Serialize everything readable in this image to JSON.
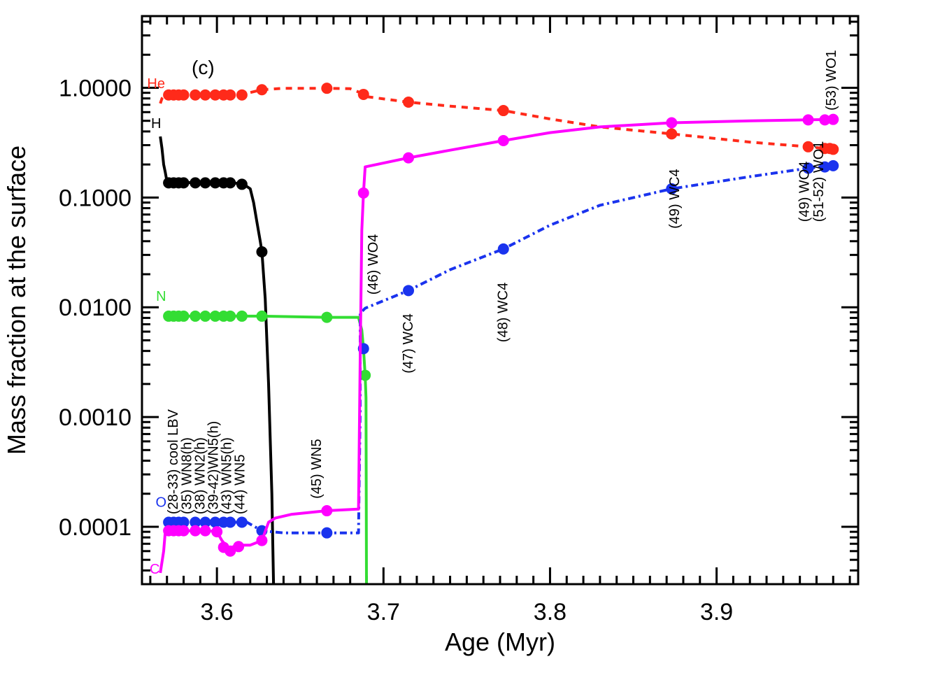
{
  "chart_data": {
    "type": "line",
    "panel_label": "(c)",
    "xlabel": "Age (Myr)",
    "ylabel": "Mass fraction at the surface",
    "xlim": [
      3.555,
      3.985
    ],
    "ylim": [
      3e-05,
      4.5
    ],
    "yscale": "log",
    "x_ticks": [
      3.6,
      3.7,
      3.8,
      3.9
    ],
    "x_tick_labels": [
      "3.6",
      "3.7",
      "3.8",
      "3.9"
    ],
    "y_ticks": [
      0.0001,
      0.001,
      0.01,
      0.1,
      1.0
    ],
    "y_tick_labels": [
      "0.0001",
      "0.0010",
      "0.0100",
      "0.1000",
      "1.0000"
    ],
    "series": [
      {
        "name": "He",
        "label": "He",
        "color": "#ff2a1a",
        "dash": "dashed",
        "line": [
          [
            3.566,
            0.72
          ],
          [
            3.567,
            0.8
          ],
          [
            3.569,
            0.85
          ],
          [
            3.6,
            0.86
          ],
          [
            3.615,
            0.87
          ],
          [
            3.627,
            0.96
          ],
          [
            3.64,
            0.99
          ],
          [
            3.666,
            0.99
          ],
          [
            3.68,
            0.98
          ],
          [
            3.688,
            0.88
          ],
          [
            3.69,
            0.83
          ],
          [
            3.715,
            0.74
          ],
          [
            3.74,
            0.68
          ],
          [
            3.772,
            0.62
          ],
          [
            3.8,
            0.52
          ],
          [
            3.83,
            0.44
          ],
          [
            3.873,
            0.38
          ],
          [
            3.92,
            0.32
          ],
          [
            3.955,
            0.29
          ],
          [
            3.97,
            0.275
          ]
        ],
        "points": [
          [
            3.571,
            0.86
          ],
          [
            3.574,
            0.86
          ],
          [
            3.577,
            0.86
          ],
          [
            3.58,
            0.86
          ],
          [
            3.587,
            0.86
          ],
          [
            3.593,
            0.86
          ],
          [
            3.599,
            0.86
          ],
          [
            3.604,
            0.86
          ],
          [
            3.608,
            0.86
          ],
          [
            3.615,
            0.86
          ],
          [
            3.627,
            0.96
          ],
          [
            3.666,
            0.99
          ],
          [
            3.688,
            0.87
          ],
          [
            3.715,
            0.74
          ],
          [
            3.772,
            0.62
          ],
          [
            3.873,
            0.38
          ],
          [
            3.955,
            0.29
          ],
          [
            3.965,
            0.28
          ],
          [
            3.968,
            0.28
          ],
          [
            3.97,
            0.275
          ]
        ]
      },
      {
        "name": "H",
        "label": "H",
        "color": "#000000",
        "dash": "solid",
        "line": [
          [
            3.566,
            0.36
          ],
          [
            3.567,
            0.28
          ],
          [
            3.568,
            0.2
          ],
          [
            3.569,
            0.17
          ],
          [
            3.57,
            0.14
          ],
          [
            3.574,
            0.137
          ],
          [
            3.61,
            0.136
          ],
          [
            3.616,
            0.132
          ],
          [
            3.62,
            0.12
          ],
          [
            3.622,
            0.09
          ],
          [
            3.624,
            0.06
          ],
          [
            3.626,
            0.04
          ],
          [
            3.627,
            0.032
          ],
          [
            3.629,
            0.012
          ],
          [
            3.631,
            0.002
          ],
          [
            3.633,
            0.0002
          ],
          [
            3.634,
            3e-05
          ]
        ],
        "points": [
          [
            3.571,
            0.136
          ],
          [
            3.574,
            0.136
          ],
          [
            3.577,
            0.136
          ],
          [
            3.58,
            0.136
          ],
          [
            3.587,
            0.136
          ],
          [
            3.593,
            0.136
          ],
          [
            3.599,
            0.136
          ],
          [
            3.604,
            0.136
          ],
          [
            3.608,
            0.136
          ],
          [
            3.615,
            0.132
          ],
          [
            3.627,
            0.032
          ]
        ]
      },
      {
        "name": "N",
        "label": "N",
        "color": "#33dd33",
        "dash": "solid",
        "line": [
          [
            3.569,
            0.0083
          ],
          [
            3.627,
            0.0083
          ],
          [
            3.666,
            0.0081
          ],
          [
            3.685,
            0.0081
          ],
          [
            3.687,
            0.0062
          ],
          [
            3.688,
            0.0042
          ],
          [
            3.689,
            0.0024
          ],
          [
            3.6895,
            0.0015
          ],
          [
            3.6898,
            3e-05
          ]
        ],
        "points": [
          [
            3.571,
            0.0083
          ],
          [
            3.574,
            0.0083
          ],
          [
            3.577,
            0.0083
          ],
          [
            3.58,
            0.0083
          ],
          [
            3.587,
            0.0083
          ],
          [
            3.593,
            0.0083
          ],
          [
            3.599,
            0.0083
          ],
          [
            3.604,
            0.0083
          ],
          [
            3.608,
            0.0083
          ],
          [
            3.615,
            0.0083
          ],
          [
            3.627,
            0.0083
          ],
          [
            3.666,
            0.0081
          ],
          [
            3.689,
            0.0024
          ]
        ]
      },
      {
        "name": "O",
        "label": "O",
        "color": "#1a33ee",
        "dash": "dashdot",
        "line": [
          [
            3.569,
            0.00011
          ],
          [
            3.618,
            0.00011
          ],
          [
            3.627,
            9.2e-05
          ],
          [
            3.64,
            8.8e-05
          ],
          [
            3.666,
            8.8e-05
          ],
          [
            3.685,
            8.8e-05
          ],
          [
            3.686,
            0.0012
          ],
          [
            3.686,
            0.0088
          ],
          [
            3.689,
            0.0098
          ],
          [
            3.715,
            0.0142
          ],
          [
            3.74,
            0.022
          ],
          [
            3.772,
            0.034
          ],
          [
            3.8,
            0.056
          ],
          [
            3.83,
            0.085
          ],
          [
            3.873,
            0.12
          ],
          [
            3.92,
            0.155
          ],
          [
            3.955,
            0.185
          ],
          [
            3.97,
            0.195
          ]
        ],
        "points": [
          [
            3.571,
            0.00011
          ],
          [
            3.574,
            0.00011
          ],
          [
            3.577,
            0.00011
          ],
          [
            3.58,
            0.00011
          ],
          [
            3.587,
            0.00011
          ],
          [
            3.593,
            0.00011
          ],
          [
            3.599,
            0.00011
          ],
          [
            3.604,
            0.00011
          ],
          [
            3.608,
            0.00011
          ],
          [
            3.615,
            0.00011
          ],
          [
            3.627,
            9.2e-05
          ],
          [
            3.666,
            8.8e-05
          ],
          [
            3.688,
            0.0042
          ],
          [
            3.715,
            0.0142
          ],
          [
            3.772,
            0.034
          ],
          [
            3.873,
            0.12
          ],
          [
            3.955,
            0.185
          ],
          [
            3.965,
            0.19
          ],
          [
            3.97,
            0.195
          ]
        ]
      },
      {
        "name": "C",
        "label": "C",
        "color": "#ff00ff",
        "dash": "solid",
        "line": [
          [
            3.566,
            3.8e-05
          ],
          [
            3.568,
            6e-05
          ],
          [
            3.569,
            9e-05
          ],
          [
            3.58,
            9.2e-05
          ],
          [
            3.595,
            9.2e-05
          ],
          [
            3.6,
            9e-05
          ],
          [
            3.603,
            7.5e-05
          ],
          [
            3.607,
            6.3e-05
          ],
          [
            3.612,
            6.8e-05
          ],
          [
            3.62,
            6.8e-05
          ],
          [
            3.627,
            7.5e-05
          ],
          [
            3.631,
            0.00011
          ],
          [
            3.635,
            0.00012
          ],
          [
            3.645,
            0.00013
          ],
          [
            3.666,
            0.00014
          ],
          [
            3.685,
            0.000145
          ],
          [
            3.686,
            0.0035
          ],
          [
            3.687,
            0.05
          ],
          [
            3.688,
            0.11
          ],
          [
            3.689,
            0.19
          ],
          [
            3.715,
            0.23
          ],
          [
            3.74,
            0.27
          ],
          [
            3.772,
            0.33
          ],
          [
            3.8,
            0.39
          ],
          [
            3.83,
            0.44
          ],
          [
            3.873,
            0.48
          ],
          [
            3.92,
            0.5
          ],
          [
            3.955,
            0.51
          ],
          [
            3.97,
            0.515
          ]
        ],
        "points": [
          [
            3.571,
            9.2e-05
          ],
          [
            3.574,
            9.2e-05
          ],
          [
            3.577,
            9.2e-05
          ],
          [
            3.58,
            9.2e-05
          ],
          [
            3.587,
            9.2e-05
          ],
          [
            3.593,
            9.2e-05
          ],
          [
            3.6,
            9e-05
          ],
          [
            3.604,
            6.5e-05
          ],
          [
            3.608,
            6e-05
          ],
          [
            3.613,
            6.6e-05
          ],
          [
            3.627,
            7.5e-05
          ],
          [
            3.666,
            0.00014
          ],
          [
            3.688,
            0.11
          ],
          [
            3.715,
            0.23
          ],
          [
            3.772,
            0.33
          ],
          [
            3.873,
            0.48
          ],
          [
            3.955,
            0.51
          ],
          [
            3.965,
            0.51
          ],
          [
            3.97,
            0.515
          ]
        ]
      }
    ],
    "annotations": [
      {
        "text": "(28-33) cool LBV",
        "x": 3.5765,
        "y": 0.00013
      },
      {
        "text": "(35) WN8(h)",
        "x": 3.5845,
        "y": 0.00013
      },
      {
        "text": "(38) WN2(h)",
        "x": 3.5925,
        "y": 0.00013
      },
      {
        "text": "(39-42)WN5(h)",
        "x": 3.6005,
        "y": 0.00013
      },
      {
        "text": "(43) WN5(h)",
        "x": 3.6085,
        "y": 0.00013
      },
      {
        "text": "(44) WN5",
        "x": 3.6165,
        "y": 0.00013
      },
      {
        "text": "(45) WN5",
        "x": 3.6625,
        "y": 0.00018
      },
      {
        "text": "(46) WO4",
        "x": 3.6965,
        "y": 0.013
      },
      {
        "text": "(47) WC4",
        "x": 3.7175,
        "y": 0.0025
      },
      {
        "text": "(48) WC4",
        "x": 3.7745,
        "y": 0.0048
      },
      {
        "text": "(49) WC4",
        "x": 3.8775,
        "y": 0.052
      },
      {
        "text": "(49) WO4",
        "x": 3.9555,
        "y": 0.06
      },
      {
        "text": "(51-52) WO1",
        "x": 3.964,
        "y": 0.06
      },
      {
        "text": "(53) WO1",
        "x": 3.9715,
        "y": 0.62
      }
    ]
  }
}
